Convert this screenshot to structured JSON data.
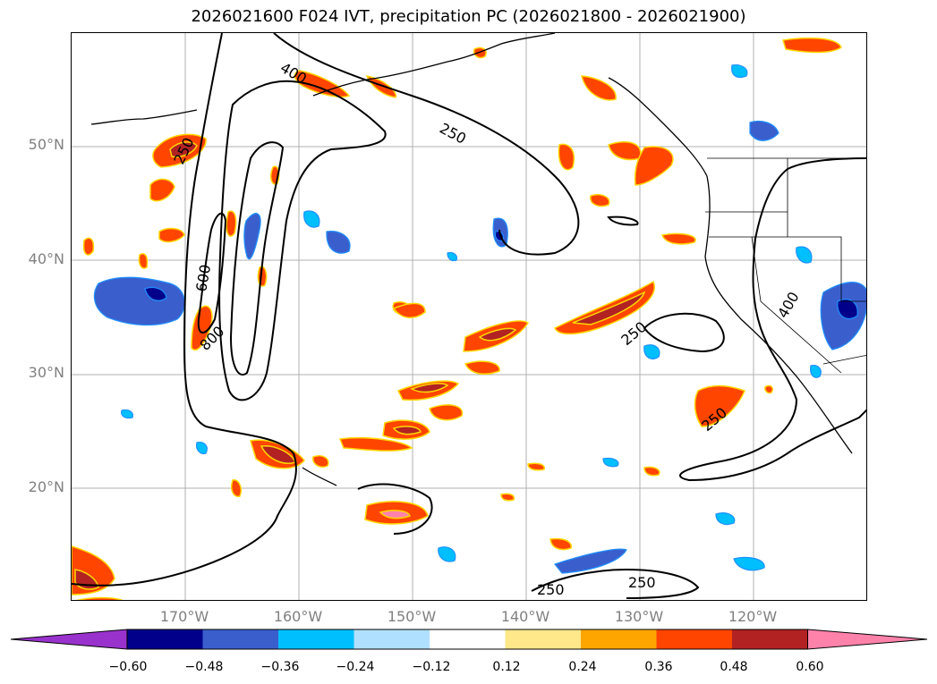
{
  "title": "2026021600 F024 IVT, precipitation PC (2026021800 - 2026021900)",
  "map": {
    "lat_labels": [
      "50°N",
      "40°N",
      "30°N",
      "20°N"
    ],
    "lon_labels": [
      "170°W",
      "160°W",
      "150°W",
      "140°W",
      "130°W",
      "120°W"
    ],
    "ivt_contour_labels": [
      "250",
      "400",
      "600",
      "800",
      "250",
      "250",
      "250",
      "250",
      "250",
      "400"
    ]
  },
  "colorbar": {
    "tick_labels": [
      "−0.60",
      "−0.48",
      "−0.36",
      "−0.24",
      "−0.12",
      "0.12",
      "0.24",
      "0.36",
      "0.48",
      "0.60"
    ],
    "colors": [
      "#9932cc",
      "#00008b",
      "#3a5fcd",
      "#00bfff",
      "#b0e0ff",
      "#ffffff",
      "#ffe88a",
      "#ffa500",
      "#ff4500",
      "#b22222",
      "#ff82ab"
    ]
  },
  "chart_data": {
    "type": "heatmap",
    "title": "2026021600 F024 IVT, precipitation PC (2026021800 - 2026021900)",
    "xaxis": "longitude",
    "yaxis": "latitude",
    "xlim": [
      -180,
      -110
    ],
    "ylim": [
      10,
      60
    ],
    "x_ticks": [
      -170,
      -160,
      -150,
      -140,
      -130,
      -120
    ],
    "y_ticks": [
      20,
      30,
      40,
      50
    ],
    "colorbar_levels": [
      -0.6,
      -0.48,
      -0.36,
      -0.24,
      -0.12,
      0.12,
      0.24,
      0.36,
      0.48,
      0.6
    ],
    "contour_field": "IVT",
    "contour_levels": [
      250,
      400,
      600,
      800
    ]
  }
}
